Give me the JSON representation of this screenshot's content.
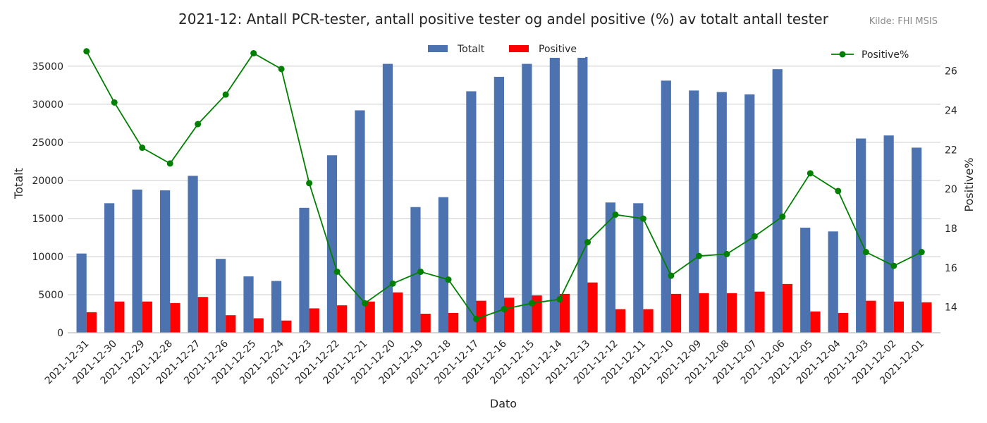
{
  "chart_data": {
    "type": "bar",
    "title": "2021-12: Antall PCR-tester, antall positive tester og andel positive (%) av totalt antall tester",
    "source": "Kilde: FHI MSIS",
    "xlabel": "Dato",
    "ylabel": "Totalt",
    "y2label": "Positive%",
    "ylim": [
      0,
      38500
    ],
    "y2lim": [
      12.7,
      27.6
    ],
    "yticks": [
      0,
      5000,
      10000,
      15000,
      20000,
      25000,
      30000,
      35000
    ],
    "y2ticks": [
      14,
      16,
      18,
      20,
      22,
      24,
      26
    ],
    "grid": true,
    "legend_bars_placement": "top-center",
    "legend_line_placement": "top-right",
    "categories": [
      "2021-12-31",
      "2021-12-30",
      "2021-12-29",
      "2021-12-28",
      "2021-12-27",
      "2021-12-26",
      "2021-12-25",
      "2021-12-24",
      "2021-12-23",
      "2021-12-22",
      "2021-12-21",
      "2021-12-20",
      "2021-12-19",
      "2021-12-18",
      "2021-12-17",
      "2021-12-16",
      "2021-12-15",
      "2021-12-14",
      "2021-12-13",
      "2021-12-12",
      "2021-12-11",
      "2021-12-10",
      "2021-12-09",
      "2021-12-08",
      "2021-12-07",
      "2021-12-06",
      "2021-12-05",
      "2021-12-04",
      "2021-12-03",
      "2021-12-02",
      "2021-12-01"
    ],
    "series": [
      {
        "name": "Totalt",
        "type": "bar",
        "axis": "left",
        "color": "#4c72b0",
        "values": [
          10400,
          17000,
          18800,
          18700,
          20600,
          9700,
          7400,
          6800,
          16400,
          23300,
          29200,
          35300,
          16500,
          17800,
          31700,
          33600,
          35300,
          36200,
          36200,
          17100,
          17000,
          33100,
          31800,
          31600,
          31300,
          34600,
          13800,
          13300,
          25500,
          25900,
          24300
        ]
      },
      {
        "name": "Positive",
        "type": "bar",
        "axis": "left",
        "color": "#ff0000",
        "values": [
          2700,
          4100,
          4100,
          3900,
          4700,
          2300,
          1900,
          1600,
          3200,
          3600,
          4100,
          5300,
          2500,
          2600,
          4200,
          4600,
          4900,
          5100,
          6600,
          3100,
          3100,
          5100,
          5200,
          5200,
          5400,
          6400,
          2800,
          2600,
          4200,
          4100,
          4000
        ]
      },
      {
        "name": "Positive%",
        "type": "line",
        "axis": "right",
        "color": "#008000",
        "values": [
          27.0,
          24.4,
          22.1,
          21.3,
          23.3,
          24.8,
          26.9,
          26.1,
          20.3,
          15.8,
          14.2,
          15.2,
          15.8,
          15.4,
          13.4,
          13.9,
          14.2,
          14.4,
          17.3,
          18.7,
          18.5,
          15.6,
          16.6,
          16.7,
          17.6,
          18.6,
          20.8,
          19.9,
          16.8,
          16.1,
          16.8
        ]
      }
    ]
  }
}
